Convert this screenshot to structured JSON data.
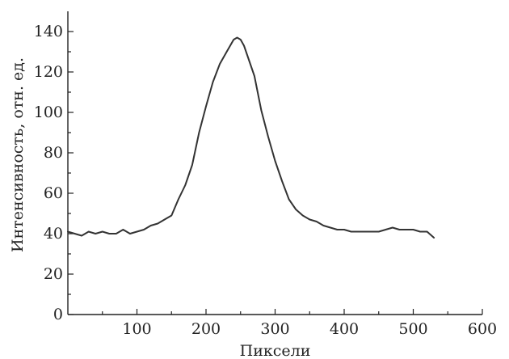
{
  "chart_data": {
    "type": "line",
    "title": "",
    "xlabel": "Пиксели",
    "ylabel": "Интенсивность, отн. ед.",
    "xlim": [
      0,
      600
    ],
    "ylim": [
      0,
      150
    ],
    "x_ticks": [
      100,
      200,
      300,
      400,
      500,
      600
    ],
    "x_tick_labels": [
      "100",
      "200",
      "300",
      "400",
      "500",
      "600"
    ],
    "y_ticks": [
      0,
      20,
      40,
      60,
      80,
      100,
      120,
      140
    ],
    "y_tick_labels": [
      "0",
      "20",
      "40",
      "60",
      "80",
      "100",
      "120",
      "140"
    ],
    "grid": false,
    "colors": {
      "series": "#333333",
      "axis": "#222222"
    },
    "series": [
      {
        "x": [
          0,
          10,
          20,
          30,
          40,
          50,
          60,
          70,
          80,
          90,
          100,
          110,
          120,
          130,
          140,
          150,
          160,
          170,
          180,
          190,
          200,
          210,
          220,
          230,
          240,
          245,
          250,
          255,
          260,
          270,
          280,
          290,
          300,
          310,
          320,
          330,
          340,
          350,
          360,
          370,
          380,
          390,
          400,
          410,
          420,
          430,
          440,
          450,
          460,
          470,
          480,
          490,
          500,
          510,
          520,
          530
        ],
        "y": [
          41,
          40,
          39,
          41,
          40,
          41,
          40,
          40,
          42,
          40,
          41,
          42,
          44,
          45,
          47,
          49,
          57,
          64,
          74,
          90,
          103,
          115,
          124,
          130,
          136,
          137,
          136,
          133,
          128,
          118,
          101,
          88,
          76,
          66,
          57,
          52,
          49,
          47,
          46,
          44,
          43,
          42,
          42,
          41,
          41,
          41,
          41,
          41,
          42,
          43,
          42,
          42,
          42,
          41,
          41,
          38
        ]
      }
    ]
  }
}
